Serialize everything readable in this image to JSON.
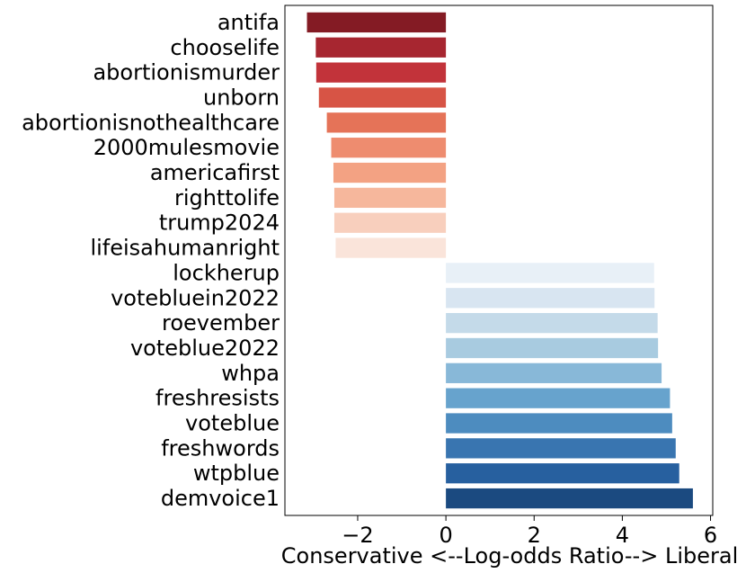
{
  "chart_data": {
    "type": "bar",
    "orientation": "horizontal",
    "title": "",
    "xlabel": "Conservative <--Log-odds Ratio--> Liberal",
    "ylabel": "",
    "xlim": [
      -3.65,
      6.05
    ],
    "xticks": [
      -2,
      0,
      2,
      4,
      6
    ],
    "xtick_labels": [
      "−2",
      "0",
      "2",
      "4",
      "6"
    ],
    "grid": false,
    "legend": "none",
    "categories": [
      "antifa",
      "chooselife",
      "abortionismurder",
      "unborn",
      "abortionisnothealthcare",
      "2000mulesmovie",
      "americafirst",
      "righttolife",
      "trump2024",
      "lifeisahumanright",
      "lockherup",
      "votebluein2022",
      "roevember",
      "voteblue2022",
      "whpa",
      "freshresists",
      "voteblue",
      "freshwords",
      "wtpblue",
      "demvoice1"
    ],
    "values": [
      -3.15,
      -2.95,
      -2.94,
      -2.88,
      -2.7,
      -2.6,
      -2.55,
      -2.53,
      -2.53,
      -2.5,
      4.72,
      4.73,
      4.8,
      4.81,
      4.89,
      5.08,
      5.13,
      5.21,
      5.29,
      5.6
    ],
    "colors": [
      "#841b24",
      "#a72630",
      "#c2333a",
      "#d75445",
      "#e57358",
      "#ee8c6f",
      "#f3a283",
      "#f6b79c",
      "#f8cfbd",
      "#fae4da",
      "#e8f0f7",
      "#d8e5f1",
      "#c4dae9",
      "#a8cbe0",
      "#88b8d8",
      "#67a3cd",
      "#4d8cbf",
      "#3975b0",
      "#27609f",
      "#1b4a80"
    ]
  }
}
